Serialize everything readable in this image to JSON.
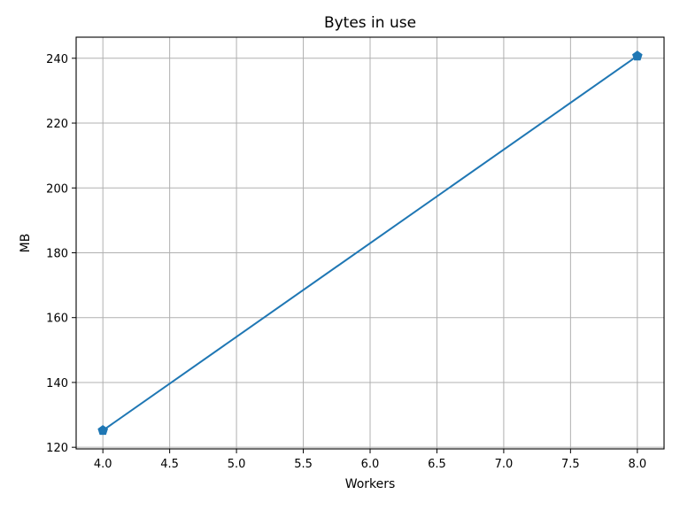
{
  "chart_data": {
    "type": "line",
    "title": "Bytes in use",
    "xlabel": "Workers",
    "ylabel": "MB",
    "xlim": [
      3.8,
      8.2
    ],
    "ylim": [
      119.5,
      246.5
    ],
    "xticks": [
      4.0,
      4.5,
      5.0,
      5.5,
      6.0,
      6.5,
      7.0,
      7.5,
      8.0
    ],
    "xtick_labels": [
      "4.0",
      "4.5",
      "5.0",
      "5.5",
      "6.0",
      "6.5",
      "7.0",
      "7.5",
      "8.0"
    ],
    "yticks": [
      120,
      140,
      160,
      180,
      200,
      220,
      240
    ],
    "ytick_labels": [
      "120",
      "140",
      "160",
      "180",
      "200",
      "220",
      "240"
    ],
    "grid": true,
    "series": [
      {
        "x": [
          4,
          8
        ],
        "values": [
          125.2,
          240.7
        ],
        "color": "#1f77b4",
        "marker": "pentagon"
      }
    ]
  }
}
